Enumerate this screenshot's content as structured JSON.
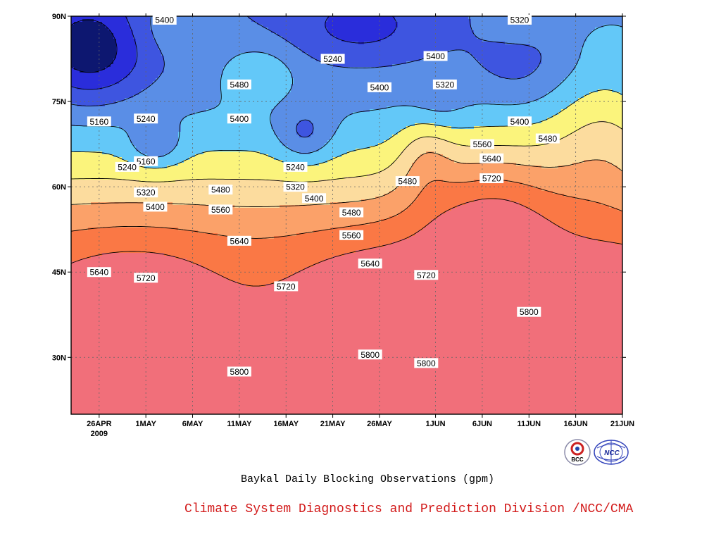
{
  "chart_data": {
    "type": "contour",
    "title": "Baykal Daily Blocking Observations (gpm)",
    "credit": "Climate System Diagnostics and Prediction Division /NCC/CMA",
    "x_ticks": [
      "26APR",
      "1MAY",
      "6MAY",
      "11MAY",
      "16MAY",
      "21MAY",
      "26MAY",
      "1JUN",
      "6JUN",
      "11JUN",
      "16JUN",
      "21JUN"
    ],
    "x_year_label": "2009",
    "x_range": [
      "2009-04-23",
      "2009-06-21"
    ],
    "y_ticks": [
      "90N",
      "75N",
      "60N",
      "45N",
      "30N"
    ],
    "y_range": [
      20,
      90
    ],
    "grid": true,
    "levels": [
      5160,
      5240,
      5320,
      5400,
      5480,
      5560,
      5640,
      5720,
      5800
    ],
    "contour_labels": [
      {
        "text": "5400",
        "date": "2009-05-03",
        "lat": 90
      },
      {
        "text": "5320",
        "date": "2009-06-10",
        "lat": 90
      },
      {
        "text": "5240",
        "date": "2009-05-21",
        "lat": 82.5
      },
      {
        "text": "5400",
        "date": "2009-06-01",
        "lat": 83
      },
      {
        "text": "5480",
        "date": "2009-05-11",
        "lat": 78
      },
      {
        "text": "5400",
        "date": "2009-05-26",
        "lat": 77.5
      },
      {
        "text": "5320",
        "date": "2009-06-02",
        "lat": 78
      },
      {
        "text": "5160",
        "date": "2009-04-26",
        "lat": 71.5
      },
      {
        "text": "5240",
        "date": "2009-05-01",
        "lat": 72
      },
      {
        "text": "5400",
        "date": "2009-05-11",
        "lat": 72
      },
      {
        "text": "5400",
        "date": "2009-06-10",
        "lat": 71.5
      },
      {
        "text": "5480",
        "date": "2009-06-13",
        "lat": 68.5
      },
      {
        "text": "5560",
        "date": "2009-06-06",
        "lat": 67.5
      },
      {
        "text": "5640",
        "date": "2009-06-07",
        "lat": 65
      },
      {
        "text": "5160",
        "date": "2009-05-01",
        "lat": 64.5
      },
      {
        "text": "5240",
        "date": "2009-04-29",
        "lat": 63.5
      },
      {
        "text": "5240",
        "date": "2009-05-17",
        "lat": 63.5
      },
      {
        "text": "5720",
        "date": "2009-06-07",
        "lat": 61.5
      },
      {
        "text": "5480",
        "date": "2009-05-29",
        "lat": 61
      },
      {
        "text": "5320",
        "date": "2009-05-17",
        "lat": 60
      },
      {
        "text": "5320",
        "date": "2009-05-01",
        "lat": 59
      },
      {
        "text": "5480",
        "date": "2009-05-09",
        "lat": 59.5
      },
      {
        "text": "5400",
        "date": "2009-05-19",
        "lat": 58
      },
      {
        "text": "5400",
        "date": "2009-05-02",
        "lat": 56.5
      },
      {
        "text": "5560",
        "date": "2009-05-09",
        "lat": 56
      },
      {
        "text": "5480",
        "date": "2009-05-23",
        "lat": 55.5
      },
      {
        "text": "5560",
        "date": "2009-05-23",
        "lat": 51.5
      },
      {
        "text": "5640",
        "date": "2009-05-11",
        "lat": 50.5
      },
      {
        "text": "5640",
        "date": "2009-05-25",
        "lat": 46.5
      },
      {
        "text": "5640",
        "date": "2009-04-26",
        "lat": 45
      },
      {
        "text": "5720",
        "date": "2009-05-01",
        "lat": 44
      },
      {
        "text": "5720",
        "date": "2009-05-31",
        "lat": 44.5
      },
      {
        "text": "5720",
        "date": "2009-05-16",
        "lat": 42.5
      },
      {
        "text": "5800",
        "date": "2009-06-11",
        "lat": 38
      },
      {
        "text": "5800",
        "date": "2009-05-25",
        "lat": 30.5
      },
      {
        "text": "5800",
        "date": "2009-05-31",
        "lat": 29
      },
      {
        "text": "5800",
        "date": "2009-05-11",
        "lat": 27.5
      }
    ],
    "colors": {
      "5160": "#0d1770",
      "5240": "#2a2ddb",
      "5320": "#3e55e0",
      "5400": "#5a8ee6",
      "5480": "#63c8f8",
      "5560": "#fbf47c",
      "5640": "#fcdc9e",
      "5720": "#fba169",
      "5800": "#fa7845",
      "above": "#f16f7a"
    }
  },
  "logos": {
    "left": "BCC",
    "right": "NCC"
  }
}
